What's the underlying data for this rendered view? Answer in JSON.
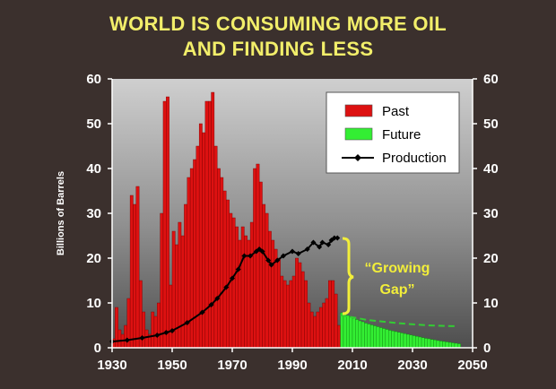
{
  "title_line1": "WORLD IS CONSUMING MORE OIL",
  "title_line2": "AND FINDING LESS",
  "colors": {
    "background": "#3b302d",
    "title": "#f2ee6a",
    "past": "#dd1111",
    "future": "#33ee33",
    "production": "#000000",
    "annotation": "#f2ee3a",
    "future_production": "#33cc33"
  },
  "chart_data": {
    "type": "bar",
    "ylabel": "Billions of Barrels",
    "xlim": [
      1930,
      2050
    ],
    "ylim": [
      0,
      60
    ],
    "x_ticks": [
      "1930",
      "1950",
      "1970",
      "1990",
      "2010",
      "2030",
      "2050"
    ],
    "y_ticks": [
      "0",
      "10",
      "20",
      "30",
      "40",
      "50",
      "60"
    ],
    "y_ticks_right": [
      "0",
      "10",
      "20",
      "30",
      "40",
      "50",
      "60"
    ],
    "legend": [
      "Past",
      "Future",
      "Production"
    ],
    "annotation": [
      "“Growing",
      "Gap”"
    ],
    "series": [
      {
        "name": "Past",
        "kind": "bar",
        "x_start": 1930,
        "x_step": 1,
        "values": [
          2,
          9,
          4,
          3,
          5,
          11,
          34,
          32,
          36,
          15,
          8,
          4,
          3,
          8,
          7,
          10,
          30,
          55,
          56,
          14,
          26,
          23,
          28,
          25,
          32,
          38,
          40,
          42,
          45,
          50,
          48,
          55,
          55,
          57,
          45,
          40,
          38,
          35,
          33,
          30,
          29,
          27,
          24,
          27,
          25,
          24,
          28,
          40,
          41,
          37,
          32,
          30,
          26,
          24,
          22,
          20,
          16,
          15,
          14,
          15,
          16,
          20,
          19,
          17,
          15,
          10,
          8,
          7,
          8,
          9,
          10,
          11,
          15,
          15,
          12,
          5
        ]
      },
      {
        "name": "Future",
        "kind": "bar",
        "x_start": 2006,
        "x_step": 1,
        "values": [
          7.8,
          7.5,
          7.2,
          6.9,
          6.6,
          6.3,
          6.0,
          5.8,
          5.5,
          5.3,
          5.1,
          4.9,
          4.7,
          4.5,
          4.3,
          4.1,
          3.9,
          3.75,
          3.6,
          3.45,
          3.3,
          3.15,
          3.0,
          2.85,
          2.7,
          2.55,
          2.4,
          2.25,
          2.1,
          2.0,
          1.85,
          1.75,
          1.6,
          1.5,
          1.4,
          1.3,
          1.2,
          1.1,
          1.0,
          0.9
        ]
      },
      {
        "name": "Production",
        "kind": "line",
        "x": [
          1930,
          1935,
          1940,
          1945,
          1948,
          1950,
          1955,
          1960,
          1963,
          1965,
          1968,
          1970,
          1972,
          1974,
          1976,
          1978,
          1979,
          1980,
          1982,
          1983,
          1985,
          1987,
          1990,
          1992,
          1995,
          1997,
          1999,
          2000,
          2002,
          2003,
          2004,
          2005
        ],
        "values": [
          1.4,
          1.7,
          2.2,
          2.8,
          3.4,
          3.8,
          5.6,
          7.9,
          9.6,
          11.0,
          13.5,
          15.5,
          17.5,
          20.5,
          20.5,
          21.5,
          22.0,
          21.5,
          19.5,
          18.5,
          19.5,
          20.5,
          21.5,
          21.0,
          22.0,
          23.5,
          22.5,
          23.5,
          23.0,
          24.0,
          24.5,
          24.5
        ]
      },
      {
        "name": "Future production",
        "kind": "dashed-line",
        "x": [
          2006,
          2015,
          2025,
          2035,
          2045
        ],
        "values": [
          7.3,
          6.2,
          5.5,
          5.0,
          4.8
        ]
      }
    ]
  }
}
